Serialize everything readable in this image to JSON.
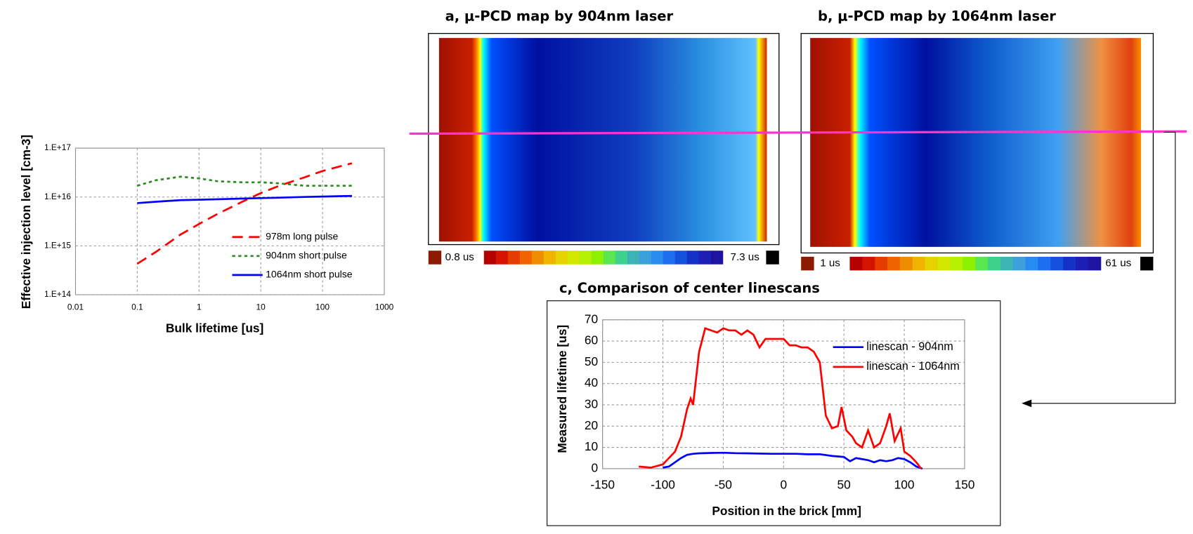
{
  "chart_data": [
    {
      "type": "line",
      "xlabel": "Bulk lifetime [us]",
      "ylabel": "Effective injection level [cm-3]",
      "xscale": "log",
      "yscale": "log",
      "grid": true,
      "legend": "lower right",
      "xlim": [
        0.01,
        1000
      ],
      "xticks": [
        0.01,
        0.1,
        1,
        10,
        100,
        1000
      ],
      "ylim": [
        100000000000000.0,
        1e+17
      ],
      "yticks": [
        {
          "value": 100000000000000.0,
          "label": "1.E+14"
        },
        {
          "value": 1000000000000000.0,
          "label": "1.E+15"
        },
        {
          "value": 1e+16,
          "label": "1.E+16"
        },
        {
          "value": 1e+17,
          "label": "1.E+17"
        }
      ],
      "x": [
        0.1,
        0.2,
        0.5,
        1,
        2,
        5,
        10,
        20,
        50,
        100,
        200,
        300
      ],
      "series": [
        {
          "name": "978m long pulse",
          "color": "#ff0000",
          "dash": "14 8",
          "values": [
            430000000000000.0,
            750000000000000.0,
            1700000000000000.0,
            2800000000000000.0,
            4500000000000000.0,
            8000000000000000.0,
            1.2e+16,
            1.7e+16,
            2.5e+16,
            3.4e+16,
            4.3e+16,
            4.9e+16
          ]
        },
        {
          "name": "904nm short pulse",
          "color": "#2e8b22",
          "dash": "4 4",
          "values": [
            1.7e+16,
            2.2e+16,
            2.6e+16,
            2.4e+16,
            2.1e+16,
            2e+16,
            2e+16,
            1.9e+16,
            1.7e+16,
            1.7e+16,
            1.7e+16,
            1.7e+16
          ]
        },
        {
          "name": "1064nm short pulse",
          "color": "#0000ff",
          "dash": "",
          "values": [
            7500000000000000.0,
            8000000000000000.0,
            8600000000000000.0,
            8800000000000000.0,
            9000000000000000.0,
            9300000000000000.0,
            9500000000000000.0,
            9700000000000000.0,
            1e+16,
            1.02e+16,
            1.04e+16,
            1.05e+16
          ]
        }
      ]
    },
    {
      "type": "map",
      "title": "a, μ-PCD map by 904nm laser",
      "colorbar": {
        "min": {
          "value": 0.8,
          "label": "0.8 us"
        },
        "max": {
          "value": 7.3,
          "label": "7.3 us"
        },
        "min_color": "#8b1a00",
        "max_color": "#000000",
        "colors": [
          "#b40000",
          "#d21400",
          "#e63c00",
          "#f06400",
          "#f08c00",
          "#f0b400",
          "#e6d200",
          "#d2e600",
          "#b4f000",
          "#8cf000",
          "#5ae650",
          "#3cd28c",
          "#3cb4b4",
          "#3ca0dc",
          "#288cf0",
          "#1e6ef0",
          "#1450dc",
          "#1432c8",
          "#1e1eb4",
          "#1e14a0"
        ]
      }
    },
    {
      "type": "map",
      "title": "b, μ-PCD map by 1064nm laser",
      "colorbar": {
        "min": {
          "value": 1,
          "label": "1 us"
        },
        "max": {
          "value": 61,
          "label": "61 us"
        },
        "min_color": "#8b1a00",
        "max_color": "#000000",
        "colors": [
          "#b40000",
          "#d21400",
          "#e63c00",
          "#f06400",
          "#f08c00",
          "#f0b400",
          "#e6d200",
          "#d2e600",
          "#b4f000",
          "#8cf000",
          "#5ae650",
          "#3cd28c",
          "#3cb4b4",
          "#3ca0dc",
          "#288cf0",
          "#1e6ef0",
          "#1450dc",
          "#1432c8",
          "#1e1eb4",
          "#1e14a0"
        ]
      }
    },
    {
      "type": "line",
      "title": "c, Comparison of center linescans",
      "xlabel": "Position in the brick [mm]",
      "ylabel": "Measured lifetime [us]",
      "grid": true,
      "legend": "upper right",
      "xlim": [
        -150,
        150
      ],
      "xticks": [
        -150,
        -100,
        -50,
        0,
        50,
        100,
        150
      ],
      "ylim": [
        0,
        70
      ],
      "yticks": [
        0,
        10,
        20,
        30,
        40,
        50,
        60,
        70
      ],
      "series": [
        {
          "name": "linescan - 904nm",
          "color": "#0000ff",
          "dash": "",
          "x": [
            -100,
            -95,
            -90,
            -85,
            -80,
            -75,
            -70,
            -60,
            -50,
            -40,
            -30,
            -20,
            -10,
            0,
            10,
            20,
            30,
            40,
            50,
            55,
            60,
            65,
            70,
            75,
            80,
            85,
            90,
            95,
            100,
            105,
            110,
            115
          ],
          "values": [
            0.5,
            1,
            3,
            5,
            6.5,
            7,
            7.2,
            7.4,
            7.5,
            7.3,
            7.2,
            7.1,
            7,
            7,
            7,
            6.8,
            6.8,
            6,
            5.5,
            3.5,
            5,
            4.5,
            4,
            3,
            4,
            3.5,
            4,
            5,
            4.5,
            3,
            1,
            0
          ]
        },
        {
          "name": "linescan - 1064nm",
          "color": "#ff0000",
          "dash": "",
          "x": [
            -120,
            -110,
            -100,
            -90,
            -85,
            -80,
            -77,
            -75,
            -70,
            -65,
            -60,
            -55,
            -50,
            -45,
            -40,
            -35,
            -30,
            -25,
            -20,
            -15,
            -10,
            -5,
            0,
            5,
            10,
            15,
            20,
            25,
            30,
            35,
            40,
            45,
            48,
            52,
            57,
            60,
            65,
            70,
            75,
            80,
            85,
            88,
            92,
            97,
            100,
            105,
            110,
            114
          ],
          "values": [
            1,
            0.5,
            2,
            8,
            15,
            28,
            33,
            30,
            55,
            66,
            65,
            64,
            66,
            65,
            65,
            63,
            65,
            63,
            57,
            61,
            61,
            61,
            61,
            58,
            58,
            57,
            57,
            55,
            50,
            25,
            19,
            20,
            29,
            18,
            15,
            12,
            10,
            18,
            10,
            12,
            20,
            26,
            13,
            19,
            8,
            6,
            3,
            0
          ]
        }
      ]
    }
  ]
}
